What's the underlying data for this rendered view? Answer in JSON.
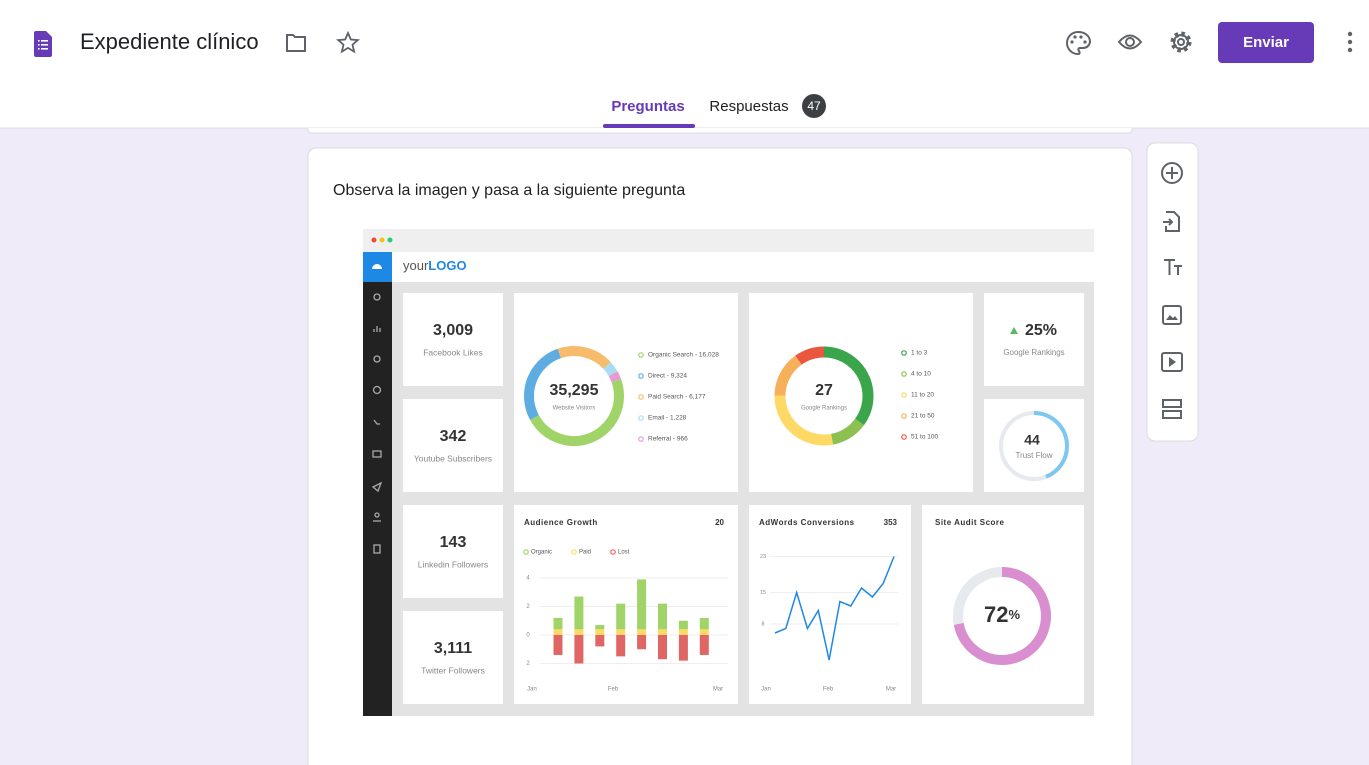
{
  "header": {
    "title": "Expediente clínico",
    "send_button": "Enviar"
  },
  "tabs": {
    "questions": "Preguntas",
    "responses": "Respuestas",
    "responses_count": 47
  },
  "question": {
    "text": "Observa la imagen y pasa a la siguiente pregunta"
  },
  "dashboard": {
    "logo": {
      "prefix": "your",
      "brand": "LOGO"
    },
    "stats": [
      {
        "value": "3,009",
        "label": "Facebook Likes"
      },
      {
        "value": "342",
        "label": "Youtube Subscribers"
      },
      {
        "value": "143",
        "label": "Linkedin Followers"
      },
      {
        "value": "3,111",
        "label": "Twitter Followers"
      }
    ],
    "visitors": {
      "total": "35,295",
      "label": "Website Visitors",
      "legend": [
        "Organic Search - 16,028",
        "Direct - 9,324",
        "Paid Search - 6,177",
        "Email - 1,228",
        "Referral - 966"
      ],
      "values": [
        16028,
        9324,
        6177,
        1228,
        966
      ],
      "colors": [
        "#a0d468",
        "#5dade2",
        "#f6bb6b",
        "#a8dcf5",
        "#e59ad2"
      ]
    },
    "rankings": {
      "total": "27",
      "label": "Google Rankings",
      "legend": [
        "1 to 3",
        "4 to 10",
        "11 to 20",
        "21 to 50",
        "51 to 100"
      ],
      "values": [
        35,
        12,
        28,
        15,
        10
      ],
      "colors": [
        "#3aa54a",
        "#8cc152",
        "#ffd966",
        "#f6b05a",
        "#e9573f"
      ]
    },
    "ranking_change": {
      "value": "25%",
      "label": "Google Rankings"
    },
    "trust_flow": {
      "value": 44,
      "label": "Trust Flow"
    },
    "audience": {
      "title": "Audience Growth",
      "total": 20,
      "ylim": [
        -4,
        6
      ],
      "yticks": [
        4,
        2,
        0,
        {
          "value": -2,
          "label": "2"
        }
      ],
      "xticks": [
        "Jan",
        "Feb",
        "Mar"
      ],
      "series": [
        {
          "name": "Organic",
          "color": "#a0d468",
          "values": [
            0.8,
            2.3,
            0.3,
            1.8,
            3.5,
            1.8,
            0.6,
            0.8
          ]
        },
        {
          "name": "Paid",
          "color": "#ffd966",
          "values": [
            0.4,
            0.4,
            0.4,
            0.4,
            0.4,
            0.4,
            0.4,
            0.4
          ]
        },
        {
          "name": "Lost",
          "color": "#e06666",
          "values": [
            -1.4,
            -2,
            -0.8,
            -1.5,
            -1,
            -1.7,
            -1.8,
            -1.4
          ]
        }
      ]
    },
    "adwords": {
      "title": "AdWords Conversions",
      "total": 353,
      "ylim": [
        0,
        25
      ],
      "yticks": [
        23,
        15,
        8
      ],
      "xticks": [
        "Jan",
        "Feb",
        "Mar"
      ],
      "color": "#1e88e5",
      "values": [
        6,
        7,
        15,
        7,
        11,
        0,
        13,
        12,
        16,
        14,
        17,
        23
      ]
    },
    "site_audit": {
      "title": "Site Audit Score",
      "score": 72,
      "unit": "%"
    }
  }
}
